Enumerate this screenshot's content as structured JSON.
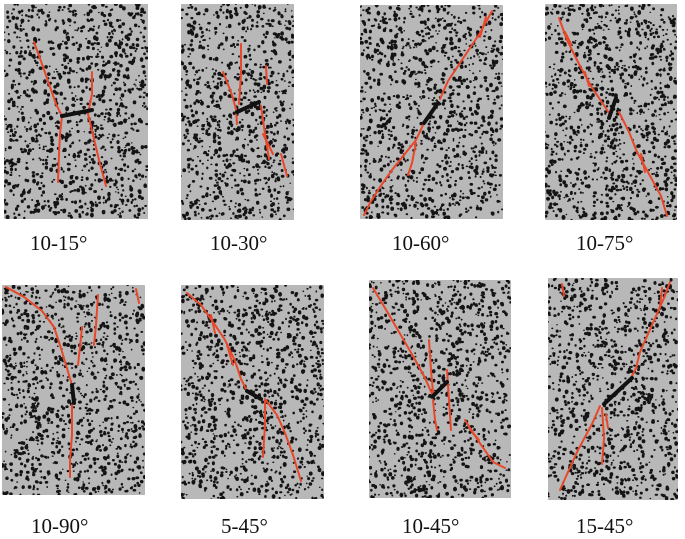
{
  "figure": {
    "specimens": [
      {
        "label": "10-15°"
      },
      {
        "label": "10-30°"
      },
      {
        "label": "10-60°"
      },
      {
        "label": "10-75°"
      },
      {
        "label": "10-90°"
      },
      {
        "label": "5-45°"
      },
      {
        "label": "10-45°"
      },
      {
        "label": "15-45°"
      }
    ],
    "colors": {
      "background": "#ffffff",
      "specimen_surface": "#b8b8b8",
      "speckle": "#141414",
      "crack": "#e8472a",
      "flaw": "#111111",
      "frame": "#1a1a1a"
    }
  }
}
